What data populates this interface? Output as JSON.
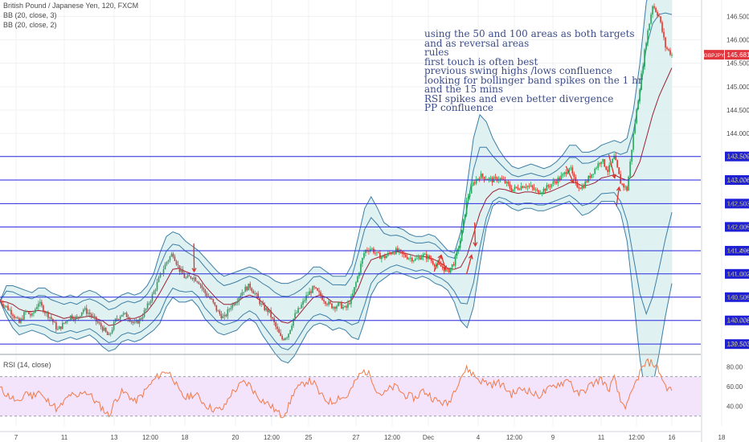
{
  "legend": {
    "symbol": "British Pound / Japanese Yen, 120, FXCM",
    "bb1": "BB (20, close, 3)",
    "bb2": "BB (20, close, 2)"
  },
  "rsi_title": "RSI (14, close)",
  "notes": [
    "using the 50 and 100 areas as both targets",
    "and as reversal areas",
    "rules",
    "first touch is often best",
    "previous swing highs /lows confluence",
    "looking for bollinger band spikes on the 1 hr",
    "and the 15 mins",
    "RSI spikes and even better divergence",
    "PP confluence"
  ],
  "colors": {
    "grid": "#eef0f3",
    "level_line": "#2a2ae0",
    "band": "#3d7ea6",
    "band_fill": "#d9efee",
    "basis": "#9b2335",
    "up": "#26a65b",
    "down": "#e2342c",
    "rsi_line": "#f07a4a",
    "rsi_fill": "#f3e3fb",
    "rsi_guides": "#9aa0a6",
    "arrow": "#e0312c",
    "price_badge": "#e0363e",
    "level_badge": "#1f1fd6",
    "axis_text": "#4a4a4a"
  },
  "chart_data": {
    "type": "candlestick",
    "symbol": "GBPJPY",
    "timeframe": "120",
    "x_ticks": [
      "7",
      "11",
      "13",
      "12:00",
      "18",
      "20",
      "12:00",
      "25",
      "27",
      "12:00",
      "Dec",
      "4",
      "12:00",
      "9",
      "11",
      "12:00",
      "16",
      "18"
    ],
    "y_ticks": [
      "146.500",
      "146.000",
      "145.500",
      "145.000",
      "144.500",
      "144.000",
      "143.500",
      "143.000",
      "142.500",
      "142.000",
      "141.500",
      "141.000",
      "140.500",
      "140.000",
      "139.500"
    ],
    "ylim": [
      139.3,
      146.85
    ],
    "horizontal_levels": [
      "143.509",
      "143.006",
      "142.503",
      "142.005",
      "141.496",
      "141.002",
      "140.505",
      "140.008",
      "139.503"
    ],
    "last_price": "145.681",
    "price_label": "GBPJPY",
    "close_path": [
      140.42,
      140.3,
      140.15,
      139.95,
      140.2,
      140.1,
      140.4,
      140.2,
      140.05,
      139.8,
      139.95,
      140.1,
      140.05,
      140.25,
      140.15,
      140.0,
      139.85,
      139.65,
      140.0,
      140.15,
      140.1,
      139.92,
      140.05,
      140.3,
      140.6,
      140.95,
      141.25,
      141.45,
      141.1,
      140.9,
      140.95,
      140.85,
      140.6,
      140.45,
      140.2,
      140.05,
      140.3,
      140.45,
      140.65,
      140.75,
      140.55,
      140.3,
      140.2,
      139.9,
      139.6,
      139.7,
      140.1,
      140.3,
      140.55,
      140.7,
      140.55,
      140.4,
      140.3,
      140.35,
      140.25,
      140.5,
      141.0,
      141.5,
      141.55,
      141.4,
      141.35,
      141.45,
      141.5,
      141.4,
      141.35,
      141.3,
      141.4,
      141.35,
      141.2,
      141.15,
      141.05,
      141.25,
      141.75,
      142.6,
      142.95,
      143.1,
      143.05,
      143.0,
      143.05,
      142.95,
      142.8,
      142.85,
      142.9,
      142.85,
      142.75,
      142.8,
      142.9,
      143.0,
      143.1,
      143.3,
      142.9,
      142.85,
      143.05,
      143.25,
      143.45,
      143.2,
      143.5,
      142.95,
      142.8,
      144.0,
      145.0,
      146.0,
      146.75,
      146.5,
      145.85,
      145.68
    ],
    "lower_path": [
      140.42,
      140.1,
      139.85,
      139.7,
      139.75,
      139.8,
      139.75,
      139.7,
      139.6,
      139.55,
      139.6,
      139.65,
      139.6,
      139.65,
      139.7,
      139.6,
      139.45,
      139.35,
      139.4,
      139.55,
      139.6,
      139.55,
      139.6,
      139.7,
      139.8,
      139.95,
      140.3,
      140.5,
      140.4,
      140.4,
      140.45,
      140.3,
      140.05,
      139.9,
      139.75,
      139.7,
      139.75,
      139.8,
      139.95,
      140.05,
      139.95,
      139.7,
      139.5,
      139.3,
      139.15,
      139.1,
      139.25,
      139.5,
      139.75,
      139.9,
      139.95,
      139.9,
      139.8,
      139.85,
      139.8,
      139.65,
      139.6,
      140.0,
      140.55,
      140.8,
      140.9,
      141.0,
      141.05,
      141.0,
      140.95,
      140.9,
      140.95,
      140.9,
      140.8,
      140.75,
      140.65,
      140.4,
      140.0,
      139.85,
      140.3,
      141.2,
      142.0,
      142.45,
      142.55,
      142.5,
      142.4,
      142.35,
      142.4,
      142.4,
      142.35,
      142.35,
      142.4,
      142.45,
      142.5,
      142.55,
      142.4,
      142.25,
      142.3,
      142.4,
      142.55,
      142.55,
      142.55,
      142.3,
      141.7,
      140.5,
      139.2,
      138.3,
      138.6,
      139.3,
      140.1,
      140.8
    ],
    "upper_path": [
      140.42,
      140.75,
      140.75,
      140.7,
      140.65,
      140.6,
      140.7,
      140.7,
      140.6,
      140.55,
      140.5,
      140.55,
      140.5,
      140.6,
      140.65,
      140.6,
      140.5,
      140.4,
      140.45,
      140.55,
      140.6,
      140.55,
      140.6,
      140.75,
      141.0,
      141.45,
      141.8,
      141.9,
      141.85,
      141.7,
      141.6,
      141.5,
      141.35,
      141.2,
      141.05,
      140.95,
      141.0,
      141.05,
      141.1,
      141.15,
      141.1,
      141.0,
      140.95,
      140.85,
      140.8,
      140.8,
      140.85,
      140.9,
      141.0,
      141.15,
      141.15,
      141.05,
      140.95,
      140.95,
      140.95,
      141.2,
      141.8,
      142.4,
      142.65,
      142.4,
      142.1,
      142.0,
      142.0,
      141.95,
      141.85,
      141.8,
      141.8,
      141.85,
      141.8,
      141.65,
      141.5,
      141.45,
      141.9,
      142.9,
      143.9,
      144.4,
      144.25,
      143.9,
      143.65,
      143.45,
      143.3,
      143.25,
      143.3,
      143.35,
      143.3,
      143.25,
      143.3,
      143.4,
      143.55,
      143.75,
      143.75,
      143.6,
      143.6,
      143.65,
      143.75,
      143.8,
      143.85,
      143.8,
      143.9,
      144.5,
      145.5,
      146.8,
      147.3,
      147.4,
      147.3,
      147.1
    ],
    "basis_path": [
      140.42,
      140.4,
      140.35,
      140.25,
      140.2,
      140.2,
      140.22,
      140.2,
      140.15,
      140.1,
      140.05,
      140.08,
      140.05,
      140.08,
      140.1,
      140.05,
      140.0,
      139.9,
      139.92,
      140.0,
      140.05,
      140.05,
      140.1,
      140.2,
      140.38,
      140.6,
      140.85,
      141.1,
      141.12,
      141.05,
      141.0,
      140.95,
      140.75,
      140.6,
      140.45,
      140.35,
      140.35,
      140.4,
      140.5,
      140.55,
      140.5,
      140.4,
      140.25,
      140.1,
      139.98,
      139.95,
      140.02,
      140.18,
      140.35,
      140.5,
      140.55,
      140.5,
      140.4,
      140.4,
      140.38,
      140.45,
      140.7,
      141.05,
      141.3,
      141.35,
      141.4,
      141.45,
      141.48,
      141.45,
      141.42,
      141.38,
      141.38,
      141.35,
      141.3,
      141.22,
      141.12,
      141.1,
      141.15,
      141.4,
      141.85,
      142.3,
      142.6,
      142.75,
      142.82,
      142.8,
      142.75,
      142.72,
      142.75,
      142.75,
      142.72,
      142.72,
      142.76,
      142.82,
      142.88,
      142.95,
      142.95,
      142.88,
      142.9,
      142.95,
      143.05,
      143.08,
      143.12,
      143.05,
      143.0,
      143.1,
      143.4,
      143.9,
      144.4,
      144.8,
      145.1,
      145.4
    ],
    "rsi": {
      "label": "RSI (14, close)",
      "y_ticks": [
        "80.00",
        "60.00",
        "40.00"
      ],
      "upper": 70,
      "lower": 30,
      "values": [
        58,
        52,
        48,
        42,
        55,
        50,
        56,
        46,
        44,
        36,
        44,
        52,
        48,
        56,
        52,
        44,
        38,
        30,
        46,
        54,
        52,
        44,
        50,
        58,
        66,
        72,
        76,
        70,
        54,
        48,
        52,
        50,
        42,
        38,
        36,
        38,
        52,
        58,
        64,
        62,
        52,
        46,
        42,
        36,
        30,
        38,
        56,
        60,
        66,
        64,
        52,
        46,
        44,
        50,
        48,
        58,
        70,
        76,
        70,
        54,
        52,
        58,
        60,
        52,
        50,
        48,
        56,
        52,
        46,
        44,
        42,
        56,
        70,
        78,
        72,
        66,
        64,
        62,
        64,
        58,
        52,
        56,
        58,
        54,
        50,
        54,
        58,
        62,
        64,
        68,
        52,
        54,
        60,
        64,
        68,
        56,
        68,
        44,
        40,
        58,
        74,
        84,
        84,
        76,
        60,
        56
      ]
    },
    "annotations": [
      {
        "kind": "arrow",
        "from": [
          0.2885,
          141.65
        ],
        "to": [
          0.289,
          141.05
        ]
      },
      {
        "kind": "arrow",
        "from": [
          0.6462,
          141.05
        ],
        "to": [
          0.6565,
          141.4
        ]
      },
      {
        "kind": "arrow",
        "from": [
          0.657,
          141.4
        ],
        "to": [
          0.663,
          141.1
        ]
      },
      {
        "kind": "arrow",
        "from": [
          0.6945,
          141.0
        ],
        "to": [
          0.702,
          141.4
        ]
      },
      {
        "kind": "arrow",
        "from": [
          0.7065,
          142.1
        ],
        "to": [
          0.7075,
          141.6
        ]
      },
      {
        "kind": "arrow",
        "from": [
          0.8425,
          143.3
        ],
        "to": [
          0.8535,
          142.95
        ]
      },
      {
        "kind": "arrow",
        "from": [
          0.906,
          143.55
        ],
        "to": [
          0.915,
          143.05
        ]
      },
      {
        "kind": "arrow",
        "from": [
          0.9175,
          142.45
        ],
        "to": [
          0.9215,
          142.85
        ]
      }
    ]
  }
}
